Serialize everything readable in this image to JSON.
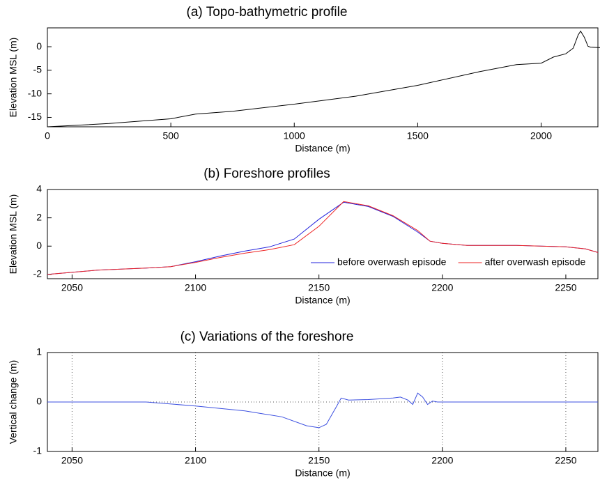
{
  "chart_data": [
    {
      "type": "line",
      "title": "(a) Topo-bathymetric profile",
      "x_label": "Distance (m)",
      "y_label": "Elevation MSL (m)",
      "x": [
        0,
        250,
        500,
        600,
        750,
        1000,
        1250,
        1500,
        1750,
        1900,
        2000,
        2050,
        2100,
        2130,
        2150,
        2160,
        2175,
        2190,
        2200,
        2240
      ],
      "values": [
        -17,
        -16.3,
        -15.3,
        -14.3,
        -13.7,
        -12.2,
        -10.5,
        -8.2,
        -5.3,
        -3.8,
        -3.5,
        -2.2,
        -1.5,
        -0.3,
        2.5,
        3.3,
        2,
        0.1,
        -0.1,
        -0.2
      ],
      "color": "#000000",
      "xlim": [
        0,
        2230
      ],
      "ylim": [
        -17,
        4
      ],
      "xticks": [
        0,
        500,
        1000,
        1500,
        2000
      ],
      "yticks": [
        -15,
        -10,
        -5,
        0
      ],
      "grid": false
    },
    {
      "type": "line",
      "title": "(b) Foreshore profiles",
      "x_label": "Distance (m)",
      "y_label": "Elevation MSL (m)",
      "x": [
        2040,
        2060,
        2080,
        2090,
        2100,
        2110,
        2120,
        2130,
        2140,
        2150,
        2160,
        2170,
        2180,
        2190,
        2195,
        2200,
        2210,
        2230,
        2250,
        2258,
        2263
      ],
      "series": [
        {
          "name": "before overwash episode",
          "color": "#2222dd",
          "values": [
            -2,
            -1.7,
            -1.55,
            -1.45,
            -1.1,
            -0.7,
            -0.35,
            -0.05,
            0.5,
            1.9,
            3.1,
            2.8,
            2.1,
            1.0,
            0.35,
            0.2,
            0.05,
            0.05,
            -0.05,
            -0.2,
            -0.45
          ]
        },
        {
          "name": "after overwash episode",
          "color": "#ee2222",
          "values": [
            -2,
            -1.7,
            -1.55,
            -1.45,
            -1.15,
            -0.8,
            -0.5,
            -0.25,
            0.1,
            1.4,
            3.15,
            2.85,
            2.15,
            1.1,
            0.35,
            0.2,
            0.05,
            0.05,
            -0.05,
            -0.2,
            -0.45
          ]
        }
      ],
      "xlim": [
        2040,
        2263
      ],
      "ylim": [
        -2.3,
        4
      ],
      "xticks": [
        2050,
        2100,
        2150,
        2200,
        2250
      ],
      "yticks": [
        -2,
        0,
        2,
        4
      ],
      "grid": false,
      "legend": "lower right"
    },
    {
      "type": "line",
      "title": "(c) Variations of the foreshore",
      "x_label": "Distance (m)",
      "y_label": "Vertical change (m)",
      "x": [
        2040,
        2080,
        2100,
        2120,
        2135,
        2145,
        2150,
        2153,
        2157,
        2159,
        2162,
        2170,
        2180,
        2183,
        2186,
        2188,
        2190,
        2192,
        2194,
        2196,
        2198,
        2263
      ],
      "values": [
        0,
        0,
        -0.08,
        -0.18,
        -0.3,
        -0.48,
        -0.52,
        -0.45,
        -0.1,
        0.08,
        0.04,
        0.05,
        0.08,
        0.1,
        0.04,
        -0.05,
        0.18,
        0.1,
        -0.05,
        0.02,
        0,
        0
      ],
      "color": "#3b4fe0",
      "xlim": [
        2040,
        2263
      ],
      "ylim": [
        -1,
        1
      ],
      "xticks": [
        2050,
        2100,
        2150,
        2200,
        2250
      ],
      "yticks": [
        -1,
        0,
        1
      ],
      "grid": true
    }
  ]
}
